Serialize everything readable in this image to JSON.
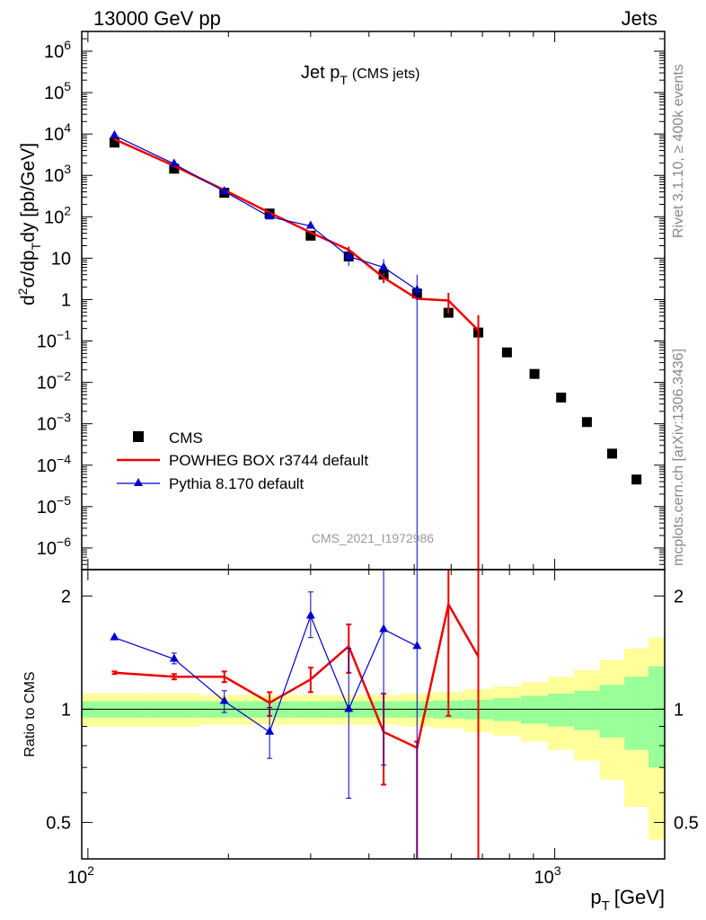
{
  "header": {
    "left": "13000 GeV pp",
    "right": "Jets"
  },
  "side": {
    "rivet": "Rivet 3.1.10, ≥ 400k events",
    "mcplots": "mcplots.cern.ch [arXiv:1306.3436]"
  },
  "watermark": "CMS_2021_I1972986",
  "chart_data": {
    "type": "scatter",
    "title": "Jet pT (CMS jets)",
    "title_main": "Jet p",
    "title_sub": "T",
    "title_note": "(CMS jets)",
    "xlabel": "pT [GeV]",
    "xlabel_main": "p",
    "xlabel_sub": "T",
    "xlabel_unit": "[GeV]",
    "ylabel": "d²σ/dpTdy [pb/GeV]",
    "ratio_ylabel": "Ratio to CMS",
    "xscale": "log",
    "yscale": "log",
    "xlim": [
      97,
      1720
    ],
    "ylim": [
      3e-07,
      3000000.0
    ],
    "ratio_ylim": [
      0.4,
      2.35
    ],
    "legend_position": "middle-left",
    "x_ticks": [
      {
        "value": 100,
        "base": "10",
        "exp": "2"
      },
      {
        "value": 1000,
        "base": "10",
        "exp": "3"
      }
    ],
    "y_ticks": [
      {
        "value": 1000000.0,
        "base": "10",
        "exp": "6"
      },
      {
        "value": 100000.0,
        "base": "10",
        "exp": "5"
      },
      {
        "value": 10000.0,
        "base": "10",
        "exp": "4"
      },
      {
        "value": 1000.0,
        "base": "10",
        "exp": "3"
      },
      {
        "value": 100.0,
        "base": "10",
        "exp": "2"
      },
      {
        "value": 10,
        "base": "10",
        "exp": ""
      },
      {
        "value": 1,
        "base": "1",
        "exp": ""
      },
      {
        "value": 0.1,
        "base": "10",
        "exp": "−1"
      },
      {
        "value": 0.01,
        "base": "10",
        "exp": "−2"
      },
      {
        "value": 0.001,
        "base": "10",
        "exp": "−3"
      },
      {
        "value": 0.0001,
        "base": "10",
        "exp": "−4"
      },
      {
        "value": 1e-05,
        "base": "10",
        "exp": "−5"
      },
      {
        "value": 1e-06,
        "base": "10",
        "exp": "−6"
      }
    ],
    "ratio_ticks": [
      {
        "value": 2,
        "label": "2"
      },
      {
        "value": 1,
        "label": "1"
      },
      {
        "value": 0.5,
        "label": "0.5"
      }
    ],
    "colors": {
      "data": "#000000",
      "powheg": "#ee0000",
      "pythia": "#0000cc",
      "band_inner": "#99ff99",
      "band_outer": "#ffff99"
    },
    "series": [
      {
        "name": "CMS",
        "style": "marker-square",
        "x": [
          114,
          153,
          196,
          245,
          300,
          362,
          430,
          507,
          592,
          686,
          790,
          905,
          1032,
          1172,
          1327,
          1497
        ],
        "y": [
          6200,
          1450,
          380,
          120,
          35,
          11,
          4,
          1.4,
          0.48,
          0.16,
          0.053,
          0.016,
          0.0043,
          0.0011,
          0.00019,
          4.5e-05
        ]
      },
      {
        "name": "POWHEG BOX r3744 default",
        "style": "line",
        "x": [
          114,
          153,
          196,
          245,
          300,
          362,
          430,
          507,
          592,
          686
        ],
        "y": [
          7500,
          1700,
          440,
          125,
          42,
          16,
          3.4,
          1.05,
          0.95,
          0.18
        ],
        "ylow": [
          7300,
          1650,
          425,
          118,
          38,
          12.5,
          2.5,
          1.0,
          0.46,
          1e-08
        ],
        "yhigh": [
          7700,
          1750,
          455,
          132,
          46,
          19,
          4.3,
          1.1,
          1.45,
          0.42
        ],
        "ratio": [
          1.25,
          1.22,
          1.22,
          1.04,
          1.2,
          1.47,
          0.87,
          0.79,
          1.9,
          1.38
        ],
        "ratio_low": [
          1.24,
          1.2,
          1.18,
          0.96,
          1.11,
          1.25,
          0.63,
          0.1,
          0.96,
          0.1
        ],
        "ratio_high": [
          1.26,
          1.24,
          1.26,
          1.11,
          1.29,
          1.68,
          1.1,
          0.82,
          2.5,
          2.5
        ]
      },
      {
        "name": "Pythia 8.170 default",
        "style": "line-triangle",
        "x": [
          114,
          153,
          196,
          245,
          300,
          362,
          430,
          507
        ],
        "y": [
          9200,
          1900,
          410,
          100,
          60,
          11,
          6,
          1.7
        ],
        "ylow": [
          9000,
          1850,
          395,
          92,
          56,
          6.5,
          3.5,
          1e-07
        ],
        "yhigh": [
          9400,
          1950,
          425,
          108,
          64,
          16,
          9.5,
          4.0
        ],
        "ratio": [
          1.55,
          1.36,
          1.05,
          0.87,
          1.77,
          1.0,
          1.63,
          1.47
        ],
        "ratio_low": [
          1.54,
          1.32,
          0.98,
          0.74,
          1.55,
          0.58,
          0.71,
          0.1
        ],
        "ratio_high": [
          1.56,
          1.41,
          1.12,
          1.01,
          2.05,
          1.45,
          2.5,
          2.5
        ]
      }
    ],
    "uncertainty_band": {
      "edges": [
        97,
        133,
        174,
        220,
        272,
        330,
        395,
        468,
        548,
        638,
        737,
        846,
        967,
        1101,
        1248,
        1410,
        1588,
        1720
      ],
      "inner": [
        0.05,
        0.05,
        0.05,
        0.05,
        0.05,
        0.05,
        0.05,
        0.05,
        0.055,
        0.06,
        0.07,
        0.085,
        0.1,
        0.12,
        0.16,
        0.22,
        0.3
      ],
      "outer": [
        0.1,
        0.1,
        0.09,
        0.09,
        0.09,
        0.09,
        0.09,
        0.1,
        0.11,
        0.13,
        0.15,
        0.18,
        0.22,
        0.27,
        0.35,
        0.45,
        0.55
      ]
    }
  }
}
